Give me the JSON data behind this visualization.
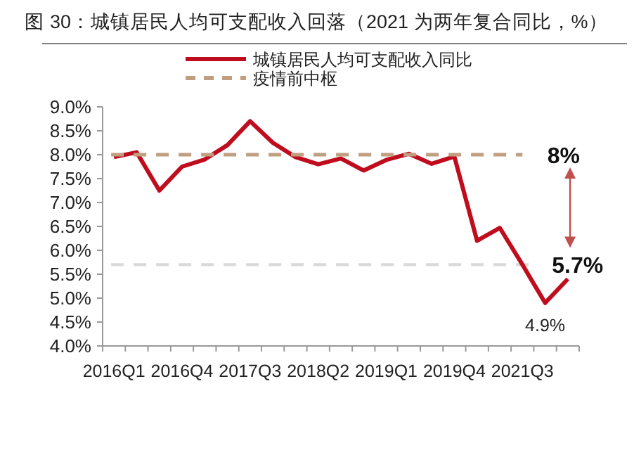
{
  "chart_data": {
    "type": "line",
    "title": "图 30：城镇居民人均可支配收入回落（2021 为两年复合同比，%）",
    "categories": [
      "2016Q1",
      null,
      null,
      "2016Q4",
      null,
      null,
      "2017Q3",
      null,
      null,
      "2018Q2",
      null,
      null,
      "2019Q1",
      null,
      null,
      "2019Q4",
      null,
      null,
      "2021Q3",
      null,
      null
    ],
    "series": [
      {
        "name": "城镇居民人均可支配收入同比",
        "color": "#c00d1e",
        "values": [
          7.95,
          8.05,
          7.25,
          7.75,
          7.9,
          8.2,
          8.7,
          8.25,
          7.95,
          7.8,
          7.92,
          7.67,
          7.89,
          8.02,
          7.81,
          7.96,
          6.2,
          6.47,
          5.7,
          4.9,
          5.4
        ],
        "value_labels": [
          null,
          null,
          null,
          null,
          null,
          null,
          null,
          null,
          null,
          null,
          null,
          null,
          null,
          null,
          null,
          null,
          null,
          null,
          null,
          "4.9%",
          null
        ]
      },
      {
        "name": "疫情前中枢",
        "color": "#bf9f7f",
        "line_style": "dashed",
        "values": [
          8,
          8,
          8,
          8,
          8,
          8,
          8,
          8,
          8,
          8,
          8,
          8,
          8,
          8,
          8,
          8,
          8,
          8,
          8,
          null,
          null
        ]
      }
    ],
    "ref_lines": [
      {
        "axis": "y",
        "value": 5.7,
        "label": "5.7%",
        "color": "#d9d9d9",
        "line_style": "dashed"
      }
    ],
    "annotations": [
      "8%"
    ],
    "ylim": [
      4,
      9
    ],
    "yticks": [
      {
        "value": 4,
        "label": "4.0%"
      },
      {
        "value": 4.5,
        "label": "4.5%"
      },
      {
        "value": 5,
        "label": "5.0%"
      },
      {
        "value": 5.5,
        "label": "5.5%"
      },
      {
        "value": 6,
        "label": "6.0%"
      },
      {
        "value": 6.5,
        "label": "6.5%"
      },
      {
        "value": 7,
        "label": "7.0%"
      },
      {
        "value": 7.5,
        "label": "7.5%"
      },
      {
        "value": 8,
        "label": "8.0%"
      },
      {
        "value": 8.5,
        "label": "8.5%"
      },
      {
        "value": 9,
        "label": "9.0%"
      }
    ],
    "grid": false,
    "legend": "top"
  }
}
